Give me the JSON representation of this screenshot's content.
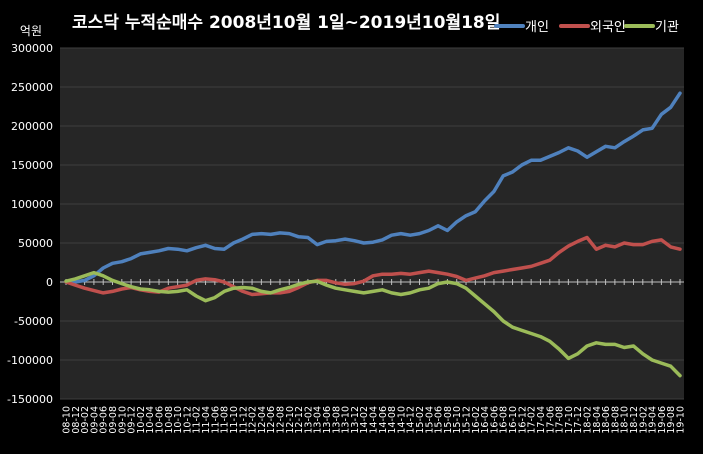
{
  "chart_data": {
    "type": "line",
    "title": "코스닥 누적순매수 2008년10월 1일~2019년10월18일",
    "ylabel": "억원",
    "xlabel": "",
    "ylim": [
      -150000,
      300000
    ],
    "y_ticks": [
      "300000",
      "250000",
      "200000",
      "150000",
      "100000",
      "50000",
      "0",
      "-50000",
      "-100000",
      "-150000"
    ],
    "x_ticks": [
      "08-10",
      "08-12",
      "09-02",
      "09-04",
      "09-06",
      "09-08",
      "09-10",
      "09-12",
      "10-02",
      "10-04",
      "10-06",
      "10-08",
      "10-10",
      "10-12",
      "11-02",
      "11-04",
      "11-06",
      "11-08",
      "11-10",
      "11-12",
      "12-02",
      "12-04",
      "12-06",
      "12-08",
      "12-10",
      "12-12",
      "13-02",
      "13-04",
      "13-06",
      "13-08",
      "13-10",
      "13-12",
      "14-02",
      "14-04",
      "14-06",
      "14-08",
      "14-10",
      "14-12",
      "15-02",
      "15-04",
      "15-06",
      "15-08",
      "15-10",
      "15-12",
      "16-02",
      "16-04",
      "16-06",
      "16-08",
      "16-10",
      "16-12",
      "17-02",
      "17-04",
      "17-06",
      "17-08",
      "17-10",
      "17-12",
      "18-02",
      "18-04",
      "18-06",
      "18-08",
      "18-10",
      "18-12",
      "19-02",
      "19-04",
      "19-06",
      "19-08",
      "19-10"
    ],
    "grid": true,
    "legend": "top-right",
    "series": [
      {
        "name": "개인",
        "color": "#4f81bd",
        "values": [
          0,
          0,
          2000,
          8000,
          18000,
          24000,
          26000,
          30000,
          36000,
          38000,
          40000,
          43000,
          42000,
          40000,
          44000,
          47000,
          43000,
          42000,
          50000,
          55000,
          61000,
          62000,
          61000,
          63000,
          62000,
          58000,
          57000,
          48000,
          52000,
          53000,
          55000,
          53000,
          50000,
          51000,
          54000,
          60000,
          62000,
          60000,
          62000,
          66000,
          72000,
          66000,
          77000,
          85000,
          90000,
          104000,
          116000,
          136000,
          141000,
          150000,
          156000,
          156000,
          161000,
          166000,
          172000,
          168000,
          160000,
          167000,
          174000,
          172000,
          180000,
          187000,
          195000,
          197000,
          215000,
          224000,
          242000
        ]
      },
      {
        "name": "외국인",
        "color": "#c0504d",
        "values": [
          0,
          -4000,
          -8000,
          -11000,
          -14000,
          -12000,
          -9000,
          -7000,
          -10000,
          -12000,
          -13000,
          -8000,
          -6000,
          -4000,
          2000,
          4000,
          3000,
          0,
          -6000,
          -12000,
          -16000,
          -15000,
          -14000,
          -14000,
          -12000,
          -7000,
          -1000,
          2000,
          2000,
          -1000,
          -3000,
          -2000,
          1000,
          8000,
          10000,
          10000,
          11000,
          10000,
          12000,
          14000,
          12000,
          10000,
          7000,
          2000,
          5000,
          8000,
          12000,
          14000,
          16000,
          18000,
          20000,
          24000,
          28000,
          38000,
          46000,
          52000,
          57000,
          42000,
          47000,
          45000,
          50000,
          48000,
          48000,
          52000,
          54000,
          45000,
          42000
        ]
      },
      {
        "name": "기관",
        "color": "#9bbb59",
        "values": [
          1000,
          4000,
          8000,
          12000,
          8000,
          2000,
          -2000,
          -6000,
          -9000,
          -10000,
          -12000,
          -13000,
          -12000,
          -10000,
          -18000,
          -24000,
          -20000,
          -12000,
          -8000,
          -7000,
          -8000,
          -12000,
          -14000,
          -10000,
          -7000,
          -3000,
          0,
          1000,
          -4000,
          -8000,
          -10000,
          -12000,
          -14000,
          -12000,
          -10000,
          -14000,
          -16000,
          -14000,
          -10000,
          -8000,
          -2000,
          0,
          -2000,
          -8000,
          -18000,
          -28000,
          -38000,
          -50000,
          -58000,
          -62000,
          -66000,
          -70000,
          -76000,
          -86000,
          -98000,
          -92000,
          -82000,
          -78000,
          -80000,
          -80000,
          -84000,
          -82000,
          -92000,
          -100000,
          -104000,
          -108000,
          -120000
        ]
      }
    ]
  }
}
